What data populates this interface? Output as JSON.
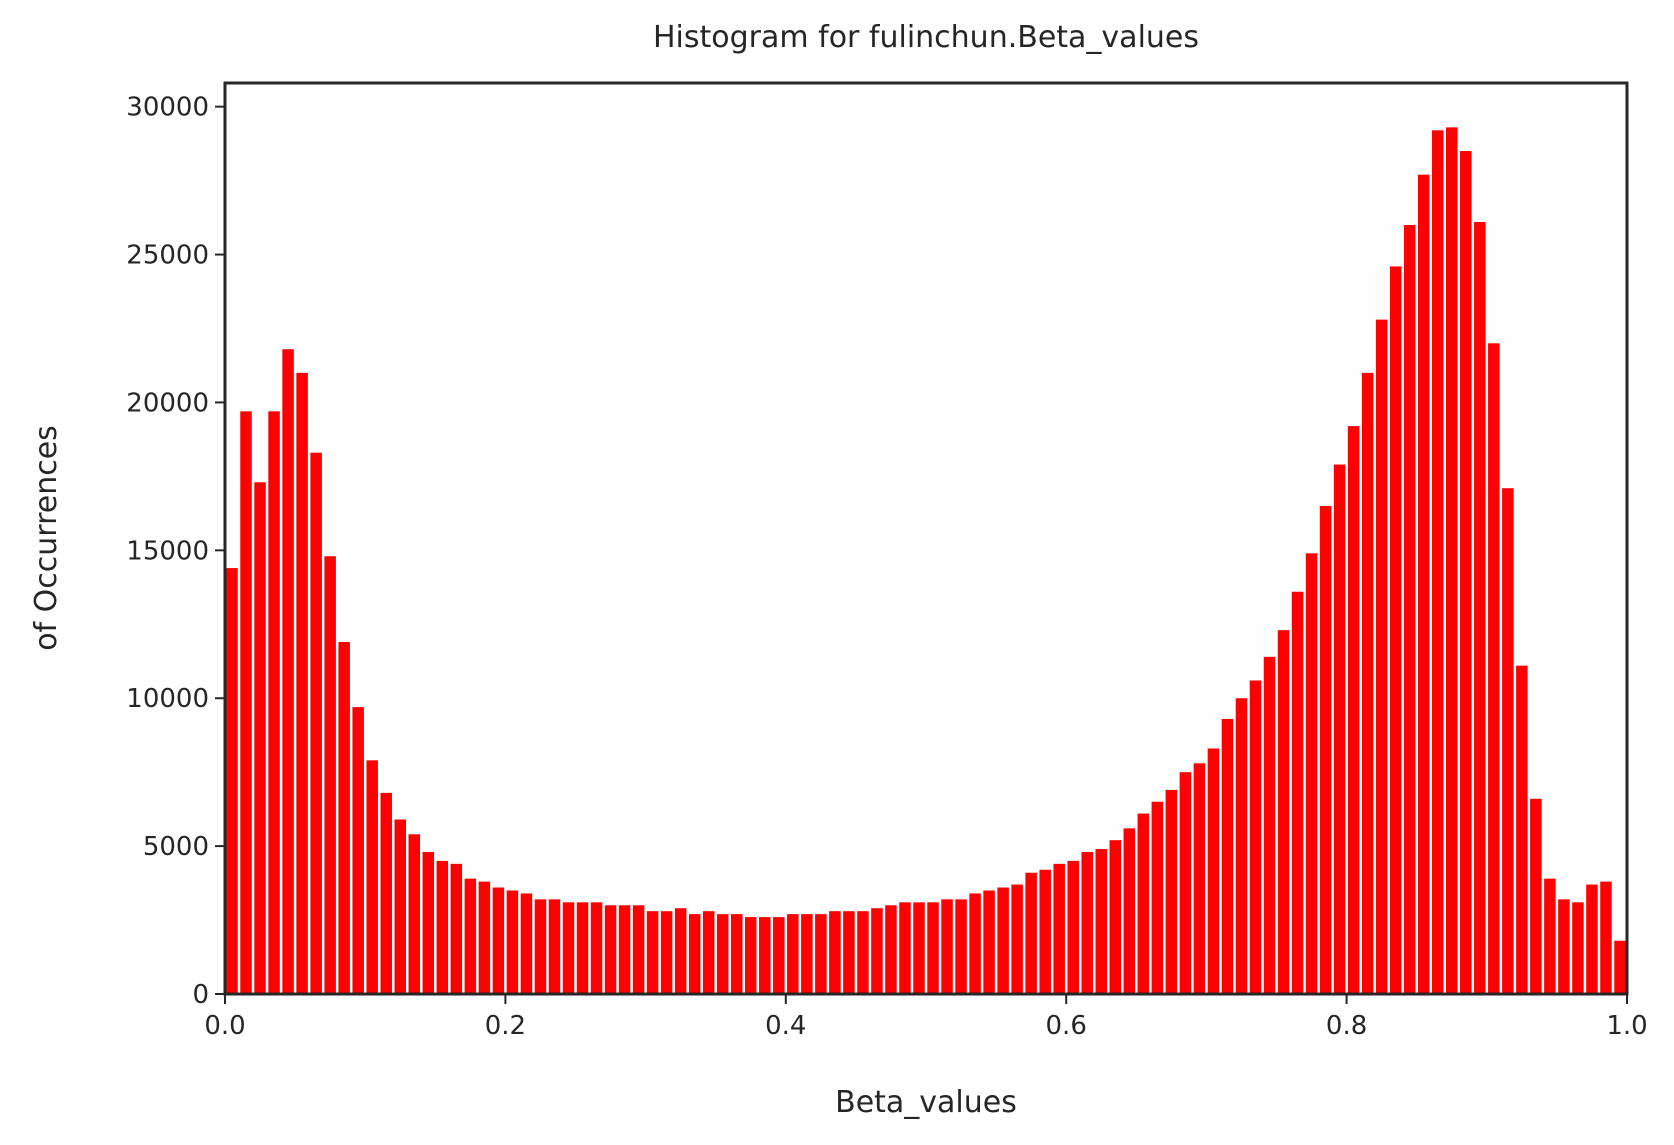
{
  "chart_data": {
    "type": "histogram",
    "title": "Histogram for fulinchun.Beta_values",
    "xlabel": "Beta_values",
    "ylabel": "of Occurrences",
    "color": "#ff0000",
    "bins": [
      0,
      0.01,
      0.02,
      0.03,
      0.04,
      0.05,
      0.06,
      0.07,
      0.08,
      0.09,
      0.1,
      0.11,
      0.12,
      0.13,
      0.14,
      0.15,
      0.16,
      0.17,
      0.18,
      0.19,
      0.2,
      0.21,
      0.22,
      0.23,
      0.24,
      0.25,
      0.26,
      0.27,
      0.28,
      0.29,
      0.3,
      0.31,
      0.32,
      0.33,
      0.34,
      0.35,
      0.36,
      0.37,
      0.38,
      0.39,
      0.4,
      0.41,
      0.42,
      0.43,
      0.44,
      0.45,
      0.46,
      0.47,
      0.48,
      0.49,
      0.5,
      0.51,
      0.52,
      0.53,
      0.54,
      0.55,
      0.56,
      0.57,
      0.58,
      0.59,
      0.6,
      0.61,
      0.62,
      0.63,
      0.64,
      0.65,
      0.66,
      0.67,
      0.68,
      0.69,
      0.7,
      0.71,
      0.72,
      0.73,
      0.74,
      0.75,
      0.76,
      0.77,
      0.78,
      0.79,
      0.8,
      0.81,
      0.82,
      0.83,
      0.84,
      0.85,
      0.86,
      0.87,
      0.88,
      0.89,
      0.9,
      0.91,
      0.92,
      0.93,
      0.94,
      0.95,
      0.96,
      0.97,
      0.98,
      0.99,
      1
    ],
    "values": [
      14400,
      19700,
      17300,
      19700,
      21800,
      21000,
      18300,
      14800,
      11900,
      9700,
      7900,
      6800,
      5900,
      5400,
      4800,
      4500,
      4400,
      3900,
      3800,
      3600,
      3500,
      3400,
      3200,
      3200,
      3100,
      3100,
      3100,
      3000,
      3000,
      3000,
      2800,
      2800,
      2900,
      2700,
      2800,
      2700,
      2700,
      2600,
      2600,
      2600,
      2700,
      2700,
      2700,
      2800,
      2800,
      2800,
      2900,
      3000,
      3100,
      3100,
      3100,
      3200,
      3200,
      3400,
      3500,
      3600,
      3700,
      4100,
      4200,
      4400,
      4500,
      4800,
      4900,
      5200,
      5600,
      6100,
      6500,
      6900,
      7500,
      7800,
      8300,
      9300,
      10000,
      10600,
      11400,
      12300,
      13600,
      14900,
      16500,
      17900,
      19200,
      21000,
      22800,
      24600,
      26000,
      27700,
      29200,
      29300,
      28500,
      26100,
      22000,
      17100,
      11100,
      6600,
      3900,
      3200,
      3100,
      3700,
      3800,
      1800
    ],
    "xlim": [
      0,
      1
    ],
    "xticks": [
      {
        "value": 0,
        "label": "0.0"
      },
      0.2,
      0.4,
      0.6,
      0.8,
      {
        "value": 1,
        "label": "1.0"
      }
    ],
    "ylim": [
      0,
      30800
    ],
    "yticks": [
      0,
      5000,
      10000,
      15000,
      20000,
      25000,
      30000
    ]
  }
}
